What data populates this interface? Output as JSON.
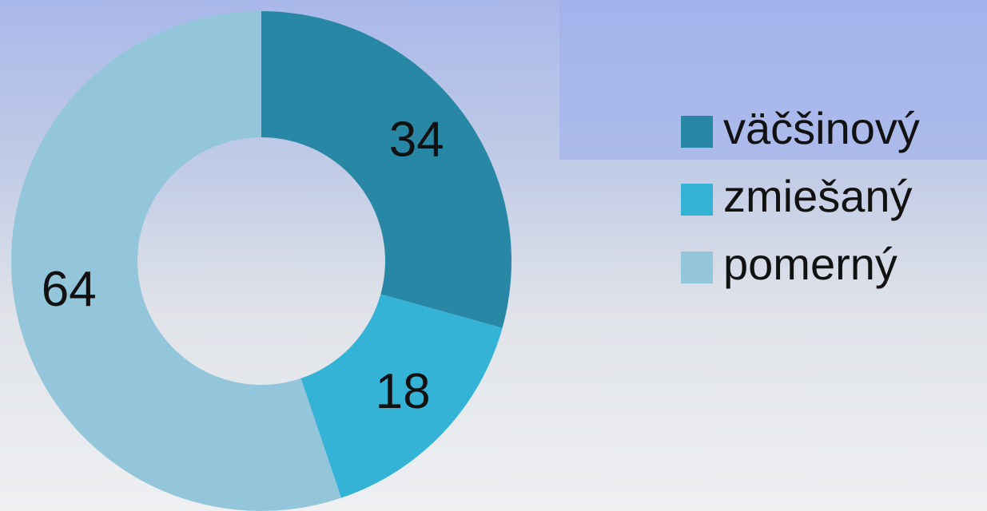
{
  "chart_data": {
    "type": "donut",
    "categories": [
      "väčšinový",
      "zmiešaný",
      "pomerný"
    ],
    "values": [
      34,
      18,
      64
    ],
    "colors": [
      "#2787a4",
      "#35b3d6",
      "#93c6da"
    ]
  }
}
